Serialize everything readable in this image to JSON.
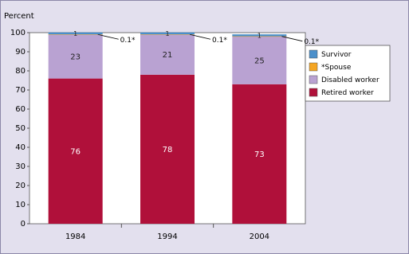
{
  "chart_data": {
    "type": "stacked-bar",
    "y_label": "Percent",
    "categories": [
      "1984",
      "1994",
      "2004"
    ],
    "series": [
      {
        "name": "Retired worker",
        "color": "#b0103a",
        "values": [
          76,
          78,
          73
        ]
      },
      {
        "name": "Disabled worker",
        "color": "#b9a2d2",
        "values": [
          23,
          21,
          25
        ]
      },
      {
        "name": "*Spouse",
        "color": "#f5a623",
        "values": [
          0.1,
          0.1,
          0.1
        ],
        "value_labels": [
          "0.1*",
          "0.1*",
          "0.1*"
        ]
      },
      {
        "name": "Survivor",
        "color": "#4a8fca",
        "values": [
          1,
          1,
          1
        ]
      }
    ],
    "ylim": [
      0,
      100
    ],
    "yticks": [
      0,
      10,
      20,
      30,
      40,
      50,
      60,
      70,
      80,
      90,
      100
    ],
    "legend": "right"
  }
}
